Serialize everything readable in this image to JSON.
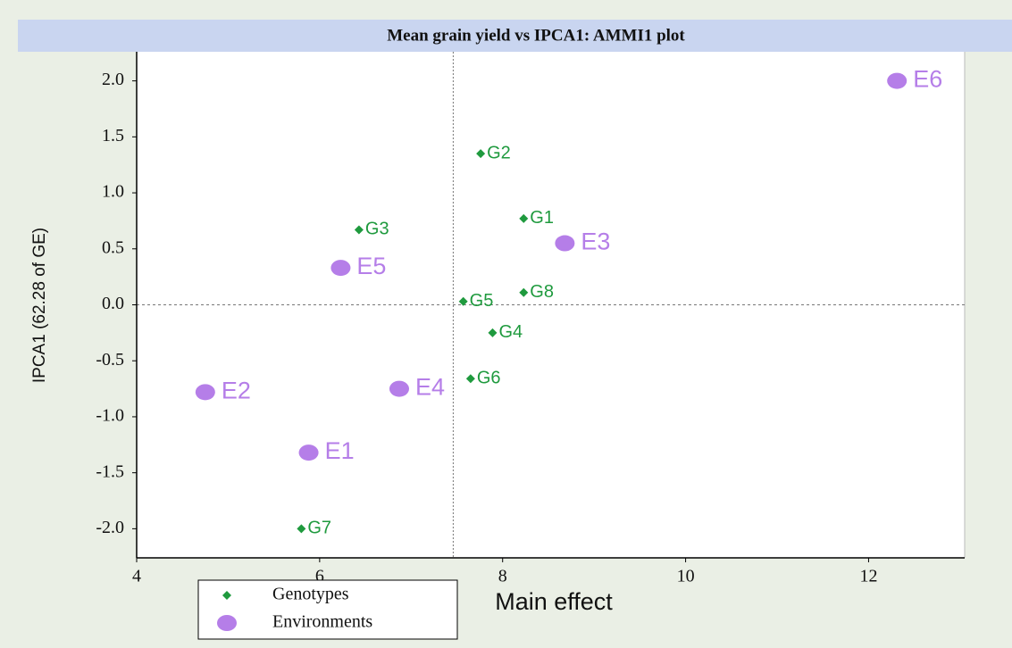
{
  "chart_data": {
    "type": "scatter",
    "title": "Mean grain yield vs IPCA1: AMMI1 plot",
    "x_label": "Main effect",
    "y_label": "IPCA1 (62.28 of GE)",
    "xlim": [
      4,
      13.05
    ],
    "ylim": [
      -2.26,
      2.26
    ],
    "xticks": [
      4,
      6,
      8,
      10,
      12
    ],
    "yticks": [
      {
        "value": 2,
        "label": "2.0"
      },
      {
        "value": 1.5,
        "label": "1.5"
      },
      {
        "value": 1,
        "label": "1.0"
      },
      {
        "value": 0.5,
        "label": "0.5"
      },
      {
        "value": 0,
        "label": "0.0"
      },
      {
        "value": -0.5,
        "label": "-0.5"
      },
      {
        "value": -1,
        "label": "-1.0"
      },
      {
        "value": -1.5,
        "label": "-1.5"
      },
      {
        "value": -2,
        "label": "-2.0"
      }
    ],
    "reference_x": 7.46,
    "reference_y": 0,
    "legend": "bottom-left",
    "series": [
      {
        "name": "Genotypes",
        "color": "#1f9a3e",
        "marker": "diamond",
        "labels": [
          "G1",
          "G2",
          "G3",
          "G4",
          "G5",
          "G6",
          "G7",
          "G8"
        ],
        "x": [
          8.23,
          7.76,
          6.43,
          7.89,
          7.57,
          7.65,
          5.8,
          8.23
        ],
        "values": [
          0.77,
          1.35,
          0.67,
          -0.25,
          0.03,
          -0.66,
          -2.0,
          0.11
        ]
      },
      {
        "name": "Environments",
        "color": "#b57ee8",
        "marker": "circle",
        "labels": [
          "E1",
          "E2",
          "E3",
          "E4",
          "E5",
          "E6"
        ],
        "x": [
          5.88,
          4.75,
          8.68,
          6.87,
          6.23,
          12.31
        ],
        "values": [
          -1.32,
          -0.78,
          0.55,
          -0.75,
          0.33,
          2.0
        ]
      }
    ]
  }
}
